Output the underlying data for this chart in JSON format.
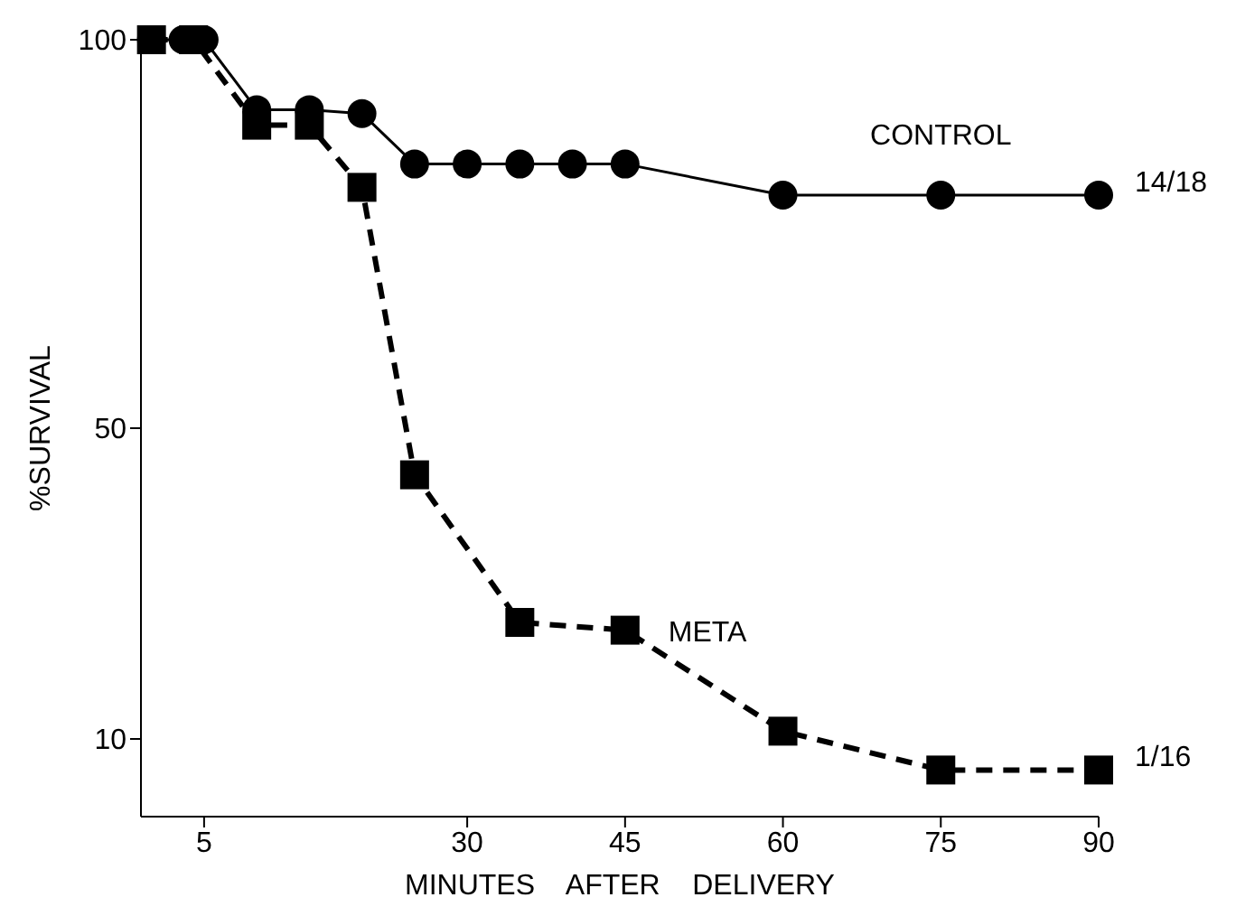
{
  "chart_data": {
    "type": "line",
    "ylabel": "%SURVIVAL",
    "xlabel": "MINUTES    AFTER    DELIVERY",
    "xlim": [
      -1,
      90
    ],
    "xticks": [
      5,
      30,
      45,
      60,
      75,
      90
    ],
    "ylim": [
      0,
      100
    ],
    "yticks": [
      10,
      50,
      100
    ],
    "series": [
      {
        "name": "CONTROL",
        "color": "#000000",
        "marker": "circle",
        "line_style": "solid",
        "x": [
          0,
          3,
          5,
          10,
          15,
          20,
          25,
          30,
          35,
          40,
          45,
          60,
          75,
          90
        ],
        "values": [
          100,
          100,
          100,
          91,
          91,
          90.5,
          84,
          84,
          84,
          84,
          84,
          80,
          80,
          80
        ]
      },
      {
        "name": "META",
        "color": "#000000",
        "marker": "square",
        "line_style": "dashed",
        "x": [
          0,
          4,
          10,
          15,
          20,
          25,
          35,
          45,
          60,
          75,
          90
        ],
        "values": [
          100,
          100,
          89,
          89,
          81,
          44,
          25,
          24,
          11,
          6,
          6
        ]
      }
    ],
    "annotations": [
      {
        "text": "14/18",
        "x": 90,
        "y": 80
      },
      {
        "text": "1/16",
        "x": 90,
        "y": 6
      }
    ]
  }
}
